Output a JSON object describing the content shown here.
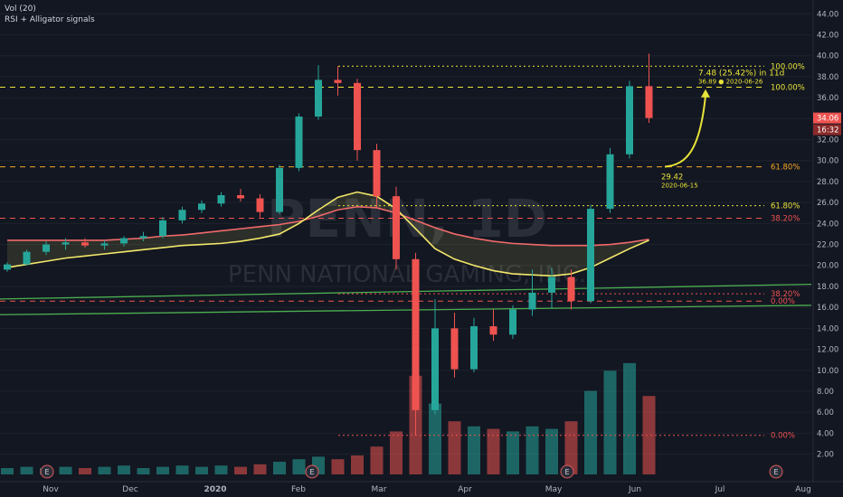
{
  "indicators": [
    "Vol (20)",
    "RSI + Alligator signals"
  ],
  "watermark": {
    "symbol": "PENN, 1D",
    "name": "PENN NATIONAL GAMING, INC."
  },
  "colors": {
    "background": "#131722",
    "up": "#26a69a",
    "down": "#ef5350",
    "fib_orange": "#f5a623",
    "fib_yellow": "#e8e337",
    "fib_red": "#ef5350",
    "trend_green": "#4caf50",
    "ma_red": "#f06a6a",
    "ma_yellow": "#f3e86a",
    "price_badge": "#ef5350",
    "axis_text": "#b2b5be"
  },
  "price_axis": {
    "ticks": [
      "44.00",
      "42.00",
      "40.00",
      "38.00",
      "36.00",
      "34.00",
      "32.00",
      "30.00",
      "28.00",
      "26.00",
      "24.00",
      "22.00",
      "20.00",
      "18.00",
      "16.00",
      "14.00",
      "12.00",
      "10.00",
      "8.00",
      "6.00",
      "4.00",
      "2.00"
    ],
    "current_price": "34.06",
    "countdown": "16:32"
  },
  "time_axis": {
    "labels": [
      "Nov",
      "Dec",
      "2020",
      "Feb",
      "Mar",
      "Apr",
      "May",
      "Jun",
      "Jul",
      "Aug"
    ]
  },
  "earnings_marker": "E",
  "chart_data": {
    "type": "candlestick",
    "symbol": "PENN",
    "interval": "1D",
    "y_range": [
      0.5,
      44.8
    ],
    "candles": [
      {
        "date": "2019-10-25",
        "o": 19.6,
        "h": 20.3,
        "l": 19.4,
        "c": 20.1
      },
      {
        "date": "2019-11-01",
        "o": 20.1,
        "h": 21.5,
        "l": 20.0,
        "c": 21.3
      },
      {
        "date": "2019-11-08",
        "o": 21.3,
        "h": 22.3,
        "l": 21.0,
        "c": 22.0
      },
      {
        "date": "2019-11-15",
        "o": 22.0,
        "h": 22.6,
        "l": 21.5,
        "c": 22.2
      },
      {
        "date": "2019-11-22",
        "o": 22.2,
        "h": 22.6,
        "l": 21.7,
        "c": 21.9
      },
      {
        "date": "2019-11-29",
        "o": 21.9,
        "h": 22.4,
        "l": 21.5,
        "c": 22.1
      },
      {
        "date": "2019-12-06",
        "o": 22.1,
        "h": 22.8,
        "l": 21.8,
        "c": 22.6
      },
      {
        "date": "2019-12-13",
        "o": 22.6,
        "h": 23.2,
        "l": 22.3,
        "c": 22.8
      },
      {
        "date": "2019-12-20",
        "o": 22.8,
        "h": 24.6,
        "l": 22.6,
        "c": 24.3
      },
      {
        "date": "2019-12-27",
        "o": 24.3,
        "h": 25.6,
        "l": 24.0,
        "c": 25.3
      },
      {
        "date": "2020-01-03",
        "o": 25.3,
        "h": 26.2,
        "l": 25.0,
        "c": 25.9
      },
      {
        "date": "2020-01-10",
        "o": 25.9,
        "h": 27.0,
        "l": 25.6,
        "c": 26.7
      },
      {
        "date": "2020-01-17",
        "o": 26.7,
        "h": 27.3,
        "l": 26.1,
        "c": 26.4
      },
      {
        "date": "2020-01-24",
        "o": 26.4,
        "h": 26.8,
        "l": 24.6,
        "c": 25.1
      },
      {
        "date": "2020-01-31",
        "o": 25.1,
        "h": 29.6,
        "l": 24.9,
        "c": 29.3
      },
      {
        "date": "2020-02-07",
        "o": 29.3,
        "h": 34.5,
        "l": 29.0,
        "c": 34.2
      },
      {
        "date": "2020-02-14",
        "o": 34.2,
        "h": 39.1,
        "l": 33.9,
        "c": 37.7
      },
      {
        "date": "2020-02-21",
        "o": 37.7,
        "h": 39.0,
        "l": 36.2,
        "c": 37.4
      },
      {
        "date": "2020-02-28",
        "o": 37.4,
        "h": 37.8,
        "l": 30.0,
        "c": 31.0
      },
      {
        "date": "2020-03-06",
        "o": 31.0,
        "h": 31.6,
        "l": 25.5,
        "c": 26.6
      },
      {
        "date": "2020-03-13",
        "o": 26.6,
        "h": 27.5,
        "l": 19.6,
        "c": 20.6
      },
      {
        "date": "2020-03-20",
        "o": 20.6,
        "h": 21.2,
        "l": 3.8,
        "c": 6.2
      },
      {
        "date": "2020-03-27",
        "o": 6.2,
        "h": 16.8,
        "l": 5.8,
        "c": 14.0
      },
      {
        "date": "2020-04-03",
        "o": 14.0,
        "h": 15.5,
        "l": 9.3,
        "c": 10.1
      },
      {
        "date": "2020-04-10",
        "o": 10.1,
        "h": 15.0,
        "l": 9.8,
        "c": 14.2
      },
      {
        "date": "2020-04-17",
        "o": 14.2,
        "h": 15.8,
        "l": 12.8,
        "c": 13.4
      },
      {
        "date": "2020-04-24",
        "o": 13.4,
        "h": 16.2,
        "l": 13.0,
        "c": 15.8
      },
      {
        "date": "2020-05-01",
        "o": 15.8,
        "h": 19.6,
        "l": 15.2,
        "c": 17.4
      },
      {
        "date": "2020-05-08",
        "o": 17.4,
        "h": 19.8,
        "l": 15.9,
        "c": 18.9
      },
      {
        "date": "2020-05-15",
        "o": 18.9,
        "h": 19.6,
        "l": 15.8,
        "c": 16.6
      },
      {
        "date": "2020-05-22",
        "o": 16.6,
        "h": 25.8,
        "l": 16.4,
        "c": 25.4
      },
      {
        "date": "2020-05-29",
        "o": 25.4,
        "h": 31.2,
        "l": 25.0,
        "c": 30.6
      },
      {
        "date": "2020-06-05",
        "o": 30.6,
        "h": 37.6,
        "l": 30.2,
        "c": 37.1
      },
      {
        "date": "2020-06-12",
        "o": 37.1,
        "h": 40.2,
        "l": 33.6,
        "c": 34.06
      }
    ],
    "volume_relative": [
      0.05,
      0.06,
      0.05,
      0.06,
      0.05,
      0.06,
      0.07,
      0.05,
      0.06,
      0.07,
      0.06,
      0.07,
      0.06,
      0.08,
      0.1,
      0.12,
      0.14,
      0.12,
      0.15,
      0.22,
      0.34,
      0.78,
      0.56,
      0.42,
      0.38,
      0.36,
      0.34,
      0.38,
      0.36,
      0.42,
      0.66,
      0.82,
      0.88,
      0.62
    ],
    "moving_averages": [
      {
        "color": "ma_red",
        "values": [
          22.4,
          22.4,
          22.4,
          22.4,
          22.4,
          22.4,
          22.5,
          22.6,
          22.8,
          22.9,
          23.1,
          23.3,
          23.5,
          23.7,
          23.9,
          24.2,
          24.7,
          25.3,
          25.6,
          25.5,
          25.0,
          24.3,
          23.6,
          23.0,
          22.6,
          22.3,
          22.1,
          22.0,
          21.9,
          21.9,
          21.9,
          22.0,
          22.2,
          22.5
        ]
      },
      {
        "color": "ma_yellow",
        "values": [
          19.8,
          20.1,
          20.4,
          20.7,
          20.9,
          21.1,
          21.3,
          21.5,
          21.7,
          21.9,
          22.0,
          22.1,
          22.3,
          22.6,
          23.0,
          24.0,
          25.3,
          26.5,
          27.0,
          26.6,
          25.4,
          23.5,
          21.6,
          20.6,
          20.0,
          19.5,
          19.2,
          19.1,
          19.0,
          19.2,
          19.8,
          20.7,
          21.6,
          22.4
        ]
      }
    ],
    "fib_levels": [
      {
        "label": "100.00%",
        "price": 39.0,
        "style": "dotted",
        "color": "fib_yellow"
      },
      {
        "label": "100.00%",
        "price": 37.0,
        "style": "dashed",
        "color": "fib_yellow"
      },
      {
        "label": "61.80%",
        "price": 29.4,
        "style": "dashed",
        "color": "fib_orange"
      },
      {
        "label": "61.80%",
        "price": 25.7,
        "style": "dotted",
        "color": "fib_yellow"
      },
      {
        "label": "38.20%",
        "price": 24.5,
        "style": "dashed",
        "color": "fib_red"
      },
      {
        "label": "38.20%",
        "price": 17.3,
        "style": "dotted",
        "color": "fib_red"
      },
      {
        "label": "0.00%",
        "price": 16.6,
        "style": "dashed",
        "color": "fib_red"
      },
      {
        "label": "0.00%",
        "price": 3.8,
        "style": "dotted",
        "color": "fib_red"
      }
    ],
    "trendlines": [
      {
        "color": "trend_green",
        "from": 16.8,
        "to": 18.2
      },
      {
        "color": "trend_green",
        "from": 15.3,
        "to": 16.2
      }
    ],
    "projection": {
      "start_price": "29.42",
      "start_date": "2020-06-15",
      "end_label": "36.89 ● 2020-06-26",
      "measure": "7.48 (25.42%) in 11d"
    }
  }
}
